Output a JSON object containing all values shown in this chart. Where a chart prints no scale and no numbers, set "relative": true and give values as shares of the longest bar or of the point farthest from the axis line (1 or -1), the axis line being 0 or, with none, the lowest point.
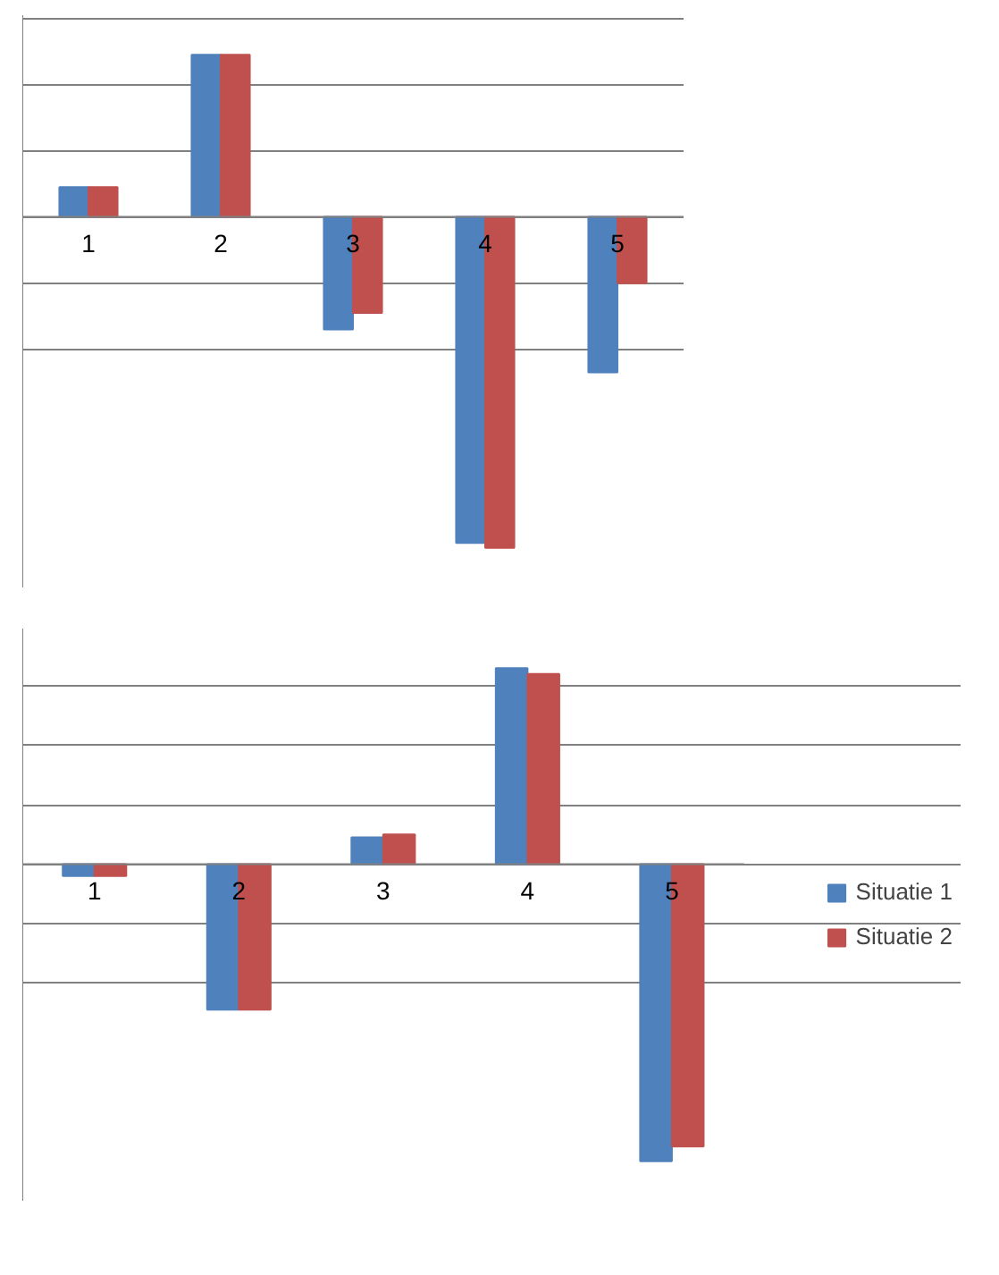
{
  "chart_data": [
    {
      "type": "bar",
      "relative": true,
      "categories": [
        "1",
        "2",
        "3",
        "4",
        "5"
      ],
      "grid": "y",
      "series": [
        {
          "color": "#4f81bd",
          "values": [
            0.09,
            0.49,
            -0.34,
            -0.985,
            -0.47
          ]
        },
        {
          "color": "#c0504d",
          "values": [
            0.09,
            0.49,
            -0.29,
            -1,
            -0.2
          ]
        }
      ]
    },
    {
      "type": "bar",
      "relative": true,
      "categories": [
        "1",
        "2",
        "3",
        "4",
        "5"
      ],
      "grid": "y",
      "legend": "right",
      "series": [
        {
          "name": "Situatie 1",
          "color": "#4f81bd",
          "values": [
            -0.04,
            -0.49,
            0.09,
            0.66,
            -1
          ]
        },
        {
          "name": "Situatie 2",
          "color": "#c0504d",
          "values": [
            -0.04,
            -0.49,
            0.1,
            0.64,
            -0.95
          ]
        }
      ]
    }
  ]
}
